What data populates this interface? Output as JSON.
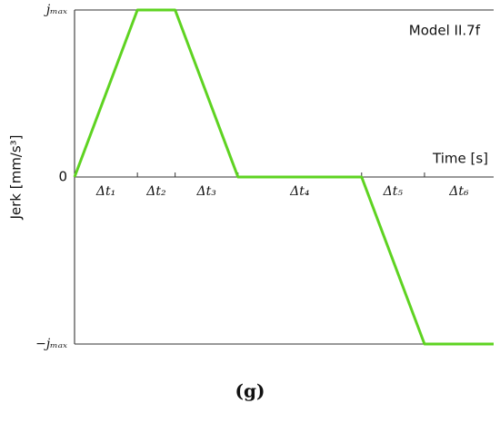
{
  "chart_data": {
    "type": "line",
    "annotation": "Model II.7f",
    "y_label": "Jerk [mm/s³]",
    "x_label": "Time [s]",
    "caption": "(g)",
    "x": [
      0,
      1.5,
      2.4,
      3.9,
      6.85,
      8.35,
      10
    ],
    "values": [
      0,
      1,
      1,
      0,
      0,
      -1,
      -1
    ],
    "segments": [
      "Δt₁",
      "Δt₂",
      "Δt₃",
      "Δt₄",
      "Δt₅",
      "Δt₆"
    ],
    "color": "#5ed321",
    "xlim": [
      0,
      10
    ],
    "ylim": [
      -1,
      1
    ],
    "yticks": [
      {
        "value": 1,
        "label": "jₘₐₓ"
      },
      0,
      {
        "value": -1,
        "label": "−jₘₐₓ"
      }
    ],
    "grid": true
  }
}
